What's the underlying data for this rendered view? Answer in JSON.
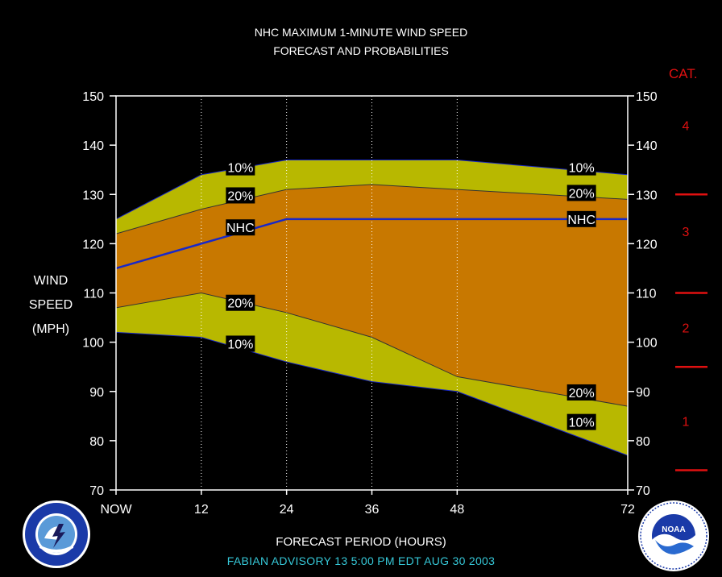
{
  "chart_data": {
    "type": "area",
    "title": "NHC MAXIMUM 1-MINUTE WIND SPEED",
    "subtitle": "FORECAST AND PROBABILITIES",
    "xlabel": "FORECAST PERIOD (HOURS)",
    "ylabel": [
      "WIND",
      "SPEED",
      "(MPH)"
    ],
    "x": [
      0,
      12,
      24,
      36,
      48,
      60,
      72
    ],
    "x_tick_labels": [
      "NOW",
      "12",
      "24",
      "36",
      "48",
      "72"
    ],
    "x_tick_values": [
      0,
      12,
      24,
      36,
      48,
      72
    ],
    "xlim": [
      0,
      72
    ],
    "ylim": [
      70,
      150
    ],
    "y_ticks": [
      70,
      80,
      90,
      100,
      110,
      120,
      130,
      140,
      150
    ],
    "series": [
      {
        "name": "10%",
        "values": [
          125,
          134,
          137,
          137,
          137,
          135.5,
          134
        ]
      },
      {
        "name": "20%",
        "values": [
          122,
          127,
          131,
          132,
          131,
          130,
          129
        ]
      },
      {
        "name": "NHC",
        "values": [
          115,
          120,
          125,
          125,
          125,
          125,
          125
        ]
      },
      {
        "name": "20%",
        "values": [
          107,
          110,
          106,
          101,
          93,
          90,
          87
        ]
      },
      {
        "name": "10%",
        "values": [
          102,
          101,
          96,
          92,
          90,
          83.5,
          77
        ]
      }
    ],
    "band_labels": [
      {
        "text": "10%",
        "x": 17.5,
        "y": 135.5
      },
      {
        "text": "20%",
        "x": 17.5,
        "y": 129.8
      },
      {
        "text": "NHC",
        "x": 17.5,
        "y": 123.3
      },
      {
        "text": "20%",
        "x": 17.5,
        "y": 108
      },
      {
        "text": "10%",
        "x": 17.5,
        "y": 99.7
      },
      {
        "text": "10%",
        "x": 65.5,
        "y": 135.5
      },
      {
        "text": "20%",
        "x": 65.5,
        "y": 130.3
      },
      {
        "text": "NHC",
        "x": 65.5,
        "y": 125
      },
      {
        "text": "20%",
        "x": 65.5,
        "y": 89.8
      },
      {
        "text": "10%",
        "x": 65.5,
        "y": 83.8
      }
    ],
    "colors": {
      "outer_band": "#b8b800",
      "inner_band": "#c87800",
      "nhc_line": "#1828c8",
      "category": "#e01010"
    },
    "grid": "vertical dotted at tick hours"
  },
  "category_scale": {
    "title": "CAT.",
    "labels": [
      {
        "text": "4",
        "y": 144
      },
      {
        "text": "3",
        "y": 122.5
      },
      {
        "text": "2",
        "y": 103
      },
      {
        "text": "1",
        "y": 84
      }
    ],
    "boundaries": [
      130,
      110,
      95,
      74
    ]
  },
  "footer": {
    "advisory": "FABIAN   ADVISORY  13 5:00  PM  EDT  AUG  30  2003",
    "logos": [
      "national-weather-service-logo",
      "noaa-logo"
    ]
  }
}
